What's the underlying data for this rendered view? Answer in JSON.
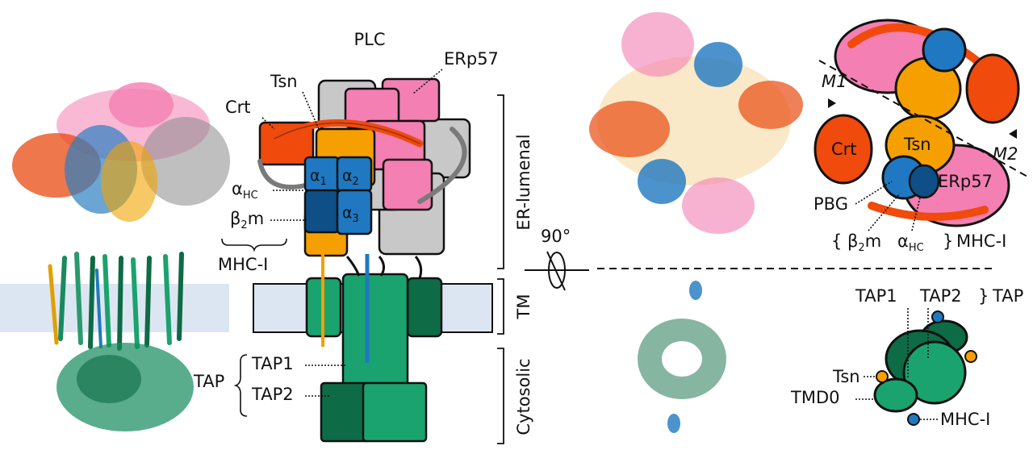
{
  "colors": {
    "crt": "#f04a0c",
    "tsn": "#f5a000",
    "erp57": "#f47fb2",
    "tapasin_grey": "#c8c8c8",
    "mhc_heavy": "#1f78c1",
    "b2m": "#0d4f86",
    "tap1": "#1aa36f",
    "tap2": "#0d6b45",
    "membrane": "#dce6f2"
  },
  "left_schematic": {
    "title": "PLC",
    "labels": {
      "erp57": "ERp57",
      "tsn": "Tsn",
      "crt": "Crt",
      "alpha1": "α",
      "alpha1_sub": "1",
      "alpha2": "α",
      "alpha2_sub": "2",
      "alpha3": "α",
      "alpha3_sub": "3",
      "alpha_hc": "α",
      "alpha_hc_sub": "HC",
      "b2m": "β",
      "b2m_sub": "2",
      "b2m_m": "m",
      "mhc": "MHC-I",
      "tap": "TAP",
      "tap1": "TAP1",
      "tap2": "TAP2"
    },
    "regions": {
      "er_lumenal": "ER-lumenal",
      "tm": "TM",
      "cytosolic": "Cytosolic"
    }
  },
  "rotation": {
    "angle": "90°"
  },
  "top_view": {
    "labels": {
      "m1": "M1",
      "m2": "M2",
      "crt": "Crt",
      "tsn": "Tsn",
      "erp57": "ERp57",
      "pbg": "PBG",
      "b2m": "β",
      "b2m_sub": "2",
      "b2m_m": "m",
      "alpha_hc": "α",
      "alpha_hc_sub": "HC",
      "mhc": "MHC-I"
    }
  },
  "bottom_view": {
    "labels": {
      "tap1": "TAP1",
      "tap2": "TAP2",
      "tap": "TAP",
      "tsn": "Tsn",
      "tmd0": "TMD0",
      "mhc": "MHC-I"
    }
  }
}
